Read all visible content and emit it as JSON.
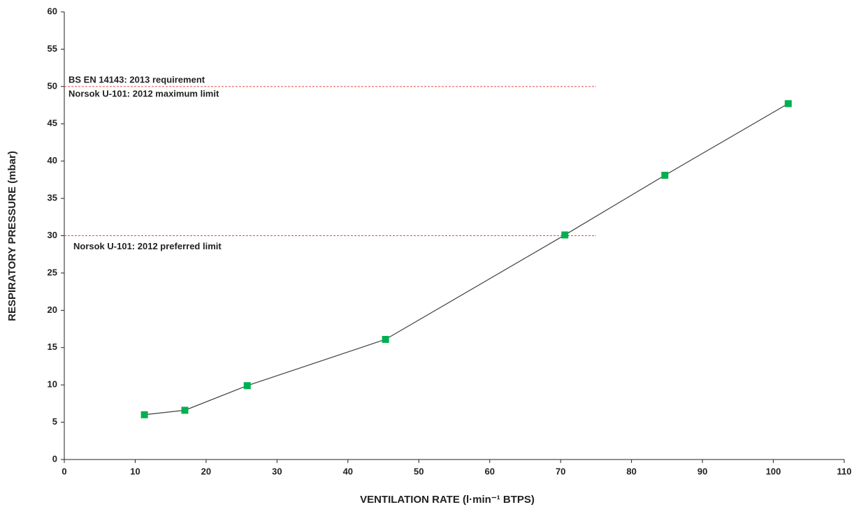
{
  "chart_data": {
    "type": "line",
    "x_label": "VENTILATION RATE (l·min⁻¹ BTPS)",
    "y_label": "RESPIRATORY PRESSURE  (mbar)",
    "x": [
      11.3,
      17.0,
      25.8,
      45.3,
      70.6,
      84.7,
      102.1
    ],
    "series": [
      {
        "color": "#00b050",
        "line_color": "#404040",
        "values": [
          6.0,
          6.6,
          9.9,
          16.1,
          30.1,
          38.1,
          47.7
        ]
      }
    ],
    "xlim": [
      0,
      110
    ],
    "xticks": [
      0,
      10,
      20,
      30,
      40,
      50,
      60,
      70,
      80,
      90,
      100,
      110
    ],
    "ylim": [
      0,
      60
    ],
    "yticks": [
      0,
      5,
      10,
      15,
      20,
      25,
      30,
      35,
      40,
      45,
      50,
      55,
      60
    ],
    "grid": false,
    "reference_lines": [
      {
        "y": 50,
        "x_end": 75,
        "color": "#e8473c",
        "labels": [
          "BS EN 14143:  2013 requirement",
          "Norsok  U-101:  2012 maximum limit"
        ]
      },
      {
        "y": 30,
        "x_end": 75,
        "color": "#e8473c",
        "labels": [
          "Norsok  U-101:  2012 preferred limit"
        ]
      }
    ]
  }
}
